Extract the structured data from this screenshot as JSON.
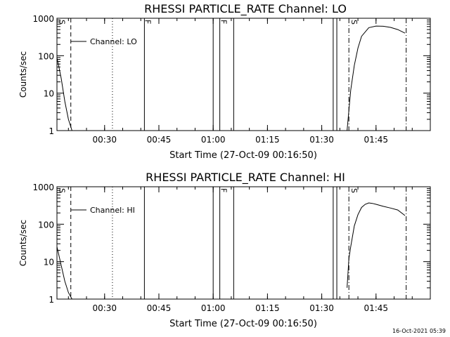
{
  "footer": {
    "timestamp": "16-Oct-2021 05:39"
  },
  "chart_data": [
    {
      "type": "line",
      "title": "RHESSI PARTICLE_RATE Channel: LO",
      "xlabel": "Start Time (27-Oct-09 00:16:50)",
      "ylabel": "Counts/sec",
      "yscale": "log",
      "xlim": [
        "00:16:50",
        "02:00:00"
      ],
      "ylim": [
        1,
        1000
      ],
      "x_ticks": [
        "00:30",
        "00:45",
        "01:00",
        "01:15",
        "01:30",
        "01:45"
      ],
      "y_ticks": [
        "1",
        "10",
        "100",
        "1000"
      ],
      "series": [
        {
          "name": "Channel: LO",
          "segments": [
            {
              "x": [
                "00:16:50",
                "00:18:00",
                "00:19:00",
                "00:20:00",
                "00:21:00"
              ],
              "y": [
                90,
                25,
                6,
                2,
                1
              ]
            },
            {
              "x": [
                "01:37:00",
                "01:38:00",
                "01:39:00",
                "01:40:00",
                "01:41:00",
                "01:43:00",
                "01:45:00",
                "01:47:00",
                "01:49:00",
                "01:51:00",
                "01:53:00"
              ],
              "y": [
                1,
                12,
                55,
                160,
                330,
                560,
                620,
                610,
                570,
                500,
                400
              ]
            }
          ]
        }
      ],
      "markers": [
        {
          "style": "dashed",
          "x": "00:20:40"
        },
        {
          "style": "dotted",
          "x": "00:32:10"
        },
        {
          "style": "solid",
          "x": "00:41:00"
        },
        {
          "style": "solid",
          "x": "01:00:00"
        },
        {
          "style": "solid",
          "x": "01:01:50"
        },
        {
          "style": "solid",
          "x": "01:05:40"
        },
        {
          "style": "solid",
          "x": "01:33:10"
        },
        {
          "style": "solid",
          "x": "01:34:10"
        },
        {
          "style": "dashdot",
          "x": "01:37:30"
        },
        {
          "style": "dashdot",
          "x": "01:53:20"
        }
      ],
      "flag_labels": [
        {
          "text": "S",
          "x": "00:17:20"
        },
        {
          "text": "F",
          "x": "00:41:00"
        },
        {
          "text": "F",
          "x": "01:02:00"
        },
        {
          "text": "S",
          "x": "01:38:00"
        }
      ],
      "legend": "top-left",
      "grid": false
    },
    {
      "type": "line",
      "title": "RHESSI PARTICLE_RATE Channel: HI",
      "xlabel": "Start Time (27-Oct-09 00:16:50)",
      "ylabel": "Counts/sec",
      "yscale": "log",
      "xlim": [
        "00:16:50",
        "02:00:00"
      ],
      "ylim": [
        1,
        1000
      ],
      "x_ticks": [
        "00:30",
        "00:45",
        "01:00",
        "01:15",
        "01:30",
        "01:45"
      ],
      "y_ticks": [
        "1",
        "10",
        "100",
        "1000"
      ],
      "series": [
        {
          "name": "Channel: HI",
          "segments": [
            {
              "x": [
                "00:16:50",
                "00:18:00",
                "00:19:00",
                "00:20:00",
                "00:21:00"
              ],
              "y": [
                25,
                8,
                3,
                1.5,
                1
              ]
            },
            {
              "x": [
                "01:37:00",
                "01:37:30",
                "01:38:00",
                "01:39:00",
                "01:40:00",
                "01:41:00",
                "01:42:00",
                "01:43:00",
                "01:44:00",
                "01:45:00",
                "01:47:00",
                "01:49:00",
                "01:51:00",
                "01:53:00"
              ],
              "y": [
                2,
                12,
                25,
                90,
                180,
                280,
                340,
                370,
                360,
                340,
                300,
                270,
                240,
                170
              ]
            }
          ]
        }
      ],
      "markers": [
        {
          "style": "dashed",
          "x": "00:20:40"
        },
        {
          "style": "dotted",
          "x": "00:32:10"
        },
        {
          "style": "solid",
          "x": "00:41:00"
        },
        {
          "style": "solid",
          "x": "01:00:00"
        },
        {
          "style": "solid",
          "x": "01:01:50"
        },
        {
          "style": "solid",
          "x": "01:05:40"
        },
        {
          "style": "solid",
          "x": "01:33:10"
        },
        {
          "style": "solid",
          "x": "01:34:10"
        },
        {
          "style": "dashdot",
          "x": "01:37:30"
        },
        {
          "style": "dashdot",
          "x": "01:53:20"
        }
      ],
      "flag_labels": [
        {
          "text": "S",
          "x": "00:17:20"
        },
        {
          "text": "F",
          "x": "01:02:00"
        },
        {
          "text": "S",
          "x": "01:38:00"
        }
      ],
      "legend": "top-left",
      "grid": false
    }
  ]
}
